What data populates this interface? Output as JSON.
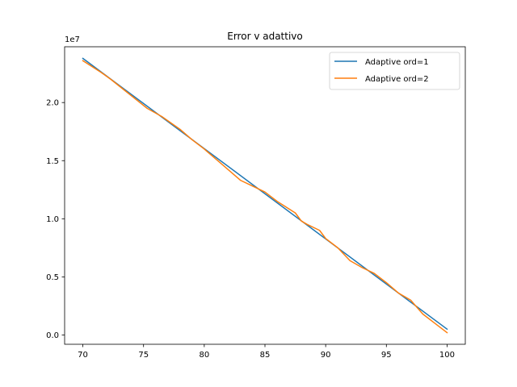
{
  "chart_data": {
    "type": "line",
    "title": "Error v adattivo",
    "xlabel": "",
    "ylabel": "",
    "y_offset_label": "1e7",
    "xlim": [
      68.5,
      101.5
    ],
    "ylim": [
      -0.08,
      2.48
    ],
    "x_ticks": [
      70,
      75,
      80,
      85,
      90,
      95,
      100
    ],
    "x_tick_labels": [
      "70",
      "75",
      "80",
      "85",
      "90",
      "95",
      "100"
    ],
    "y_ticks": [
      0.0,
      0.5,
      1.0,
      1.5,
      2.0
    ],
    "y_tick_labels": [
      "0.0",
      "0.5",
      "1.0",
      "1.5",
      "2.0"
    ],
    "grid": false,
    "legend_position": "top-right",
    "series": [
      {
        "name": "Adaptive ord=1",
        "color": "#1f77b4",
        "x": [
          70,
          100
        ],
        "y": [
          2.38,
          0.05
        ]
      },
      {
        "name": "Adaptive ord=2",
        "color": "#ff7f0e",
        "x": [
          70,
          71.5,
          72.3,
          73.5,
          75.3,
          76.5,
          78,
          79,
          80,
          81,
          82,
          83,
          84,
          85,
          86,
          87.5,
          88,
          88.5,
          89.5,
          90,
          91,
          92,
          93,
          94,
          95,
          96,
          97,
          98,
          99,
          100
        ],
        "y": [
          2.36,
          2.26,
          2.2,
          2.1,
          1.95,
          1.88,
          1.77,
          1.68,
          1.6,
          1.51,
          1.42,
          1.33,
          1.28,
          1.23,
          1.15,
          1.05,
          0.98,
          0.95,
          0.9,
          0.83,
          0.75,
          0.64,
          0.58,
          0.53,
          0.45,
          0.36,
          0.3,
          0.18,
          0.1,
          0.02
        ]
      }
    ]
  }
}
